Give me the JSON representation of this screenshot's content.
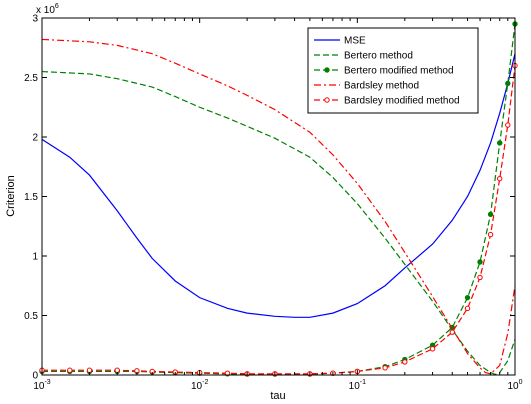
{
  "chart_data": {
    "type": "line",
    "xlabel": "tau",
    "ylabel": "Criterion",
    "x_scale": "log",
    "xlim": [
      0.001,
      1
    ],
    "ylim": [
      0,
      3000000
    ],
    "y_exponent_label": "x 10",
    "y_exponent": "6",
    "x_ticks": [
      {
        "value": 0.001,
        "base": "10",
        "exp": "-3"
      },
      {
        "value": 0.01,
        "base": "10",
        "exp": "-2"
      },
      {
        "value": 0.1,
        "base": "10",
        "exp": "-1"
      },
      {
        "value": 1,
        "base": "10",
        "exp": "0"
      }
    ],
    "y_ticks": [
      {
        "value": 0,
        "label": "0"
      },
      {
        "value": 500000,
        "label": "0.5"
      },
      {
        "value": 1000000,
        "label": "1"
      },
      {
        "value": 1500000,
        "label": "1.5"
      },
      {
        "value": 2000000,
        "label": "2"
      },
      {
        "value": 2500000,
        "label": "2.5"
      },
      {
        "value": 3000000,
        "label": "3"
      }
    ],
    "grid": false,
    "legend_position": "top-right",
    "series": [
      {
        "name": "MSE",
        "color": "#0000ff",
        "dash": "solid",
        "marker": "none",
        "points": [
          [
            0.001,
            1980000
          ],
          [
            0.0015,
            1830000
          ],
          [
            0.002,
            1680000
          ],
          [
            0.003,
            1380000
          ],
          [
            0.004,
            1150000
          ],
          [
            0.005,
            980000
          ],
          [
            0.007,
            790000
          ],
          [
            0.01,
            650000
          ],
          [
            0.015,
            560000
          ],
          [
            0.02,
            520000
          ],
          [
            0.03,
            493000
          ],
          [
            0.04,
            485000
          ],
          [
            0.05,
            485000
          ],
          [
            0.07,
            520000
          ],
          [
            0.1,
            600000
          ],
          [
            0.15,
            750000
          ],
          [
            0.2,
            900000
          ],
          [
            0.3,
            1100000
          ],
          [
            0.4,
            1300000
          ],
          [
            0.5,
            1500000
          ],
          [
            0.6,
            1720000
          ],
          [
            0.7,
            1950000
          ],
          [
            0.8,
            2200000
          ],
          [
            0.9,
            2450000
          ],
          [
            1,
            2700000
          ]
        ]
      },
      {
        "name": "Bertero method",
        "color": "#008000",
        "dash": "dashed",
        "marker": "none",
        "points": [
          [
            0.001,
            2550000
          ],
          [
            0.002,
            2530000
          ],
          [
            0.003,
            2490000
          ],
          [
            0.005,
            2420000
          ],
          [
            0.007,
            2340000
          ],
          [
            0.01,
            2250000
          ],
          [
            0.015,
            2160000
          ],
          [
            0.02,
            2090000
          ],
          [
            0.03,
            1990000
          ],
          [
            0.05,
            1830000
          ],
          [
            0.07,
            1660000
          ],
          [
            0.1,
            1440000
          ],
          [
            0.15,
            1150000
          ],
          [
            0.2,
            930000
          ],
          [
            0.3,
            620000
          ],
          [
            0.4,
            380000
          ],
          [
            0.5,
            200000
          ],
          [
            0.6,
            80000
          ],
          [
            0.7,
            20000
          ],
          [
            0.75,
            5000
          ],
          [
            0.8,
            20000
          ],
          [
            0.9,
            120000
          ],
          [
            1,
            300000
          ]
        ]
      },
      {
        "name": "Bertero modified method",
        "color": "#008000",
        "dash": "dashed",
        "marker": "dot",
        "points": [
          [
            0.001,
            30000
          ],
          [
            0.0015,
            30000
          ],
          [
            0.002,
            30000
          ],
          [
            0.003,
            30000
          ],
          [
            0.004,
            30000
          ],
          [
            0.005,
            25000
          ],
          [
            0.007,
            20000
          ],
          [
            0.01,
            15000
          ],
          [
            0.015,
            10000
          ],
          [
            0.02,
            8000
          ],
          [
            0.03,
            8000
          ],
          [
            0.05,
            8000
          ],
          [
            0.07,
            15000
          ],
          [
            0.1,
            30000
          ],
          [
            0.15,
            70000
          ],
          [
            0.2,
            130000
          ],
          [
            0.3,
            250000
          ],
          [
            0.4,
            400000
          ],
          [
            0.5,
            650000
          ],
          [
            0.6,
            950000
          ],
          [
            0.7,
            1350000
          ],
          [
            0.8,
            1950000
          ],
          [
            0.9,
            2450000
          ],
          [
            1,
            2950000
          ]
        ]
      },
      {
        "name": "Bardsley method",
        "color": "#ff0000",
        "dash": "dashdot",
        "marker": "none",
        "points": [
          [
            0.001,
            2820000
          ],
          [
            0.002,
            2800000
          ],
          [
            0.003,
            2770000
          ],
          [
            0.005,
            2700000
          ],
          [
            0.007,
            2620000
          ],
          [
            0.01,
            2530000
          ],
          [
            0.015,
            2430000
          ],
          [
            0.02,
            2350000
          ],
          [
            0.03,
            2230000
          ],
          [
            0.05,
            2040000
          ],
          [
            0.07,
            1850000
          ],
          [
            0.1,
            1610000
          ],
          [
            0.15,
            1290000
          ],
          [
            0.2,
            1030000
          ],
          [
            0.3,
            660000
          ],
          [
            0.4,
            390000
          ],
          [
            0.5,
            180000
          ],
          [
            0.6,
            60000
          ],
          [
            0.65,
            20000
          ],
          [
            0.7,
            10000
          ],
          [
            0.8,
            80000
          ],
          [
            0.9,
            350000
          ],
          [
            1,
            750000
          ]
        ]
      },
      {
        "name": "Bardsley modified method",
        "color": "#ff0000",
        "dash": "dashed",
        "marker": "circle",
        "points": [
          [
            0.001,
            40000
          ],
          [
            0.0015,
            40000
          ],
          [
            0.002,
            40000
          ],
          [
            0.003,
            40000
          ],
          [
            0.004,
            35000
          ],
          [
            0.005,
            30000
          ],
          [
            0.007,
            25000
          ],
          [
            0.01,
            20000
          ],
          [
            0.015,
            15000
          ],
          [
            0.02,
            10000
          ],
          [
            0.03,
            10000
          ],
          [
            0.05,
            10000
          ],
          [
            0.07,
            15000
          ],
          [
            0.1,
            30000
          ],
          [
            0.15,
            60000
          ],
          [
            0.2,
            110000
          ],
          [
            0.3,
            220000
          ],
          [
            0.4,
            360000
          ],
          [
            0.5,
            560000
          ],
          [
            0.6,
            820000
          ],
          [
            0.7,
            1180000
          ],
          [
            0.8,
            1650000
          ],
          [
            0.9,
            2100000
          ],
          [
            1,
            2600000
          ]
        ]
      }
    ]
  }
}
